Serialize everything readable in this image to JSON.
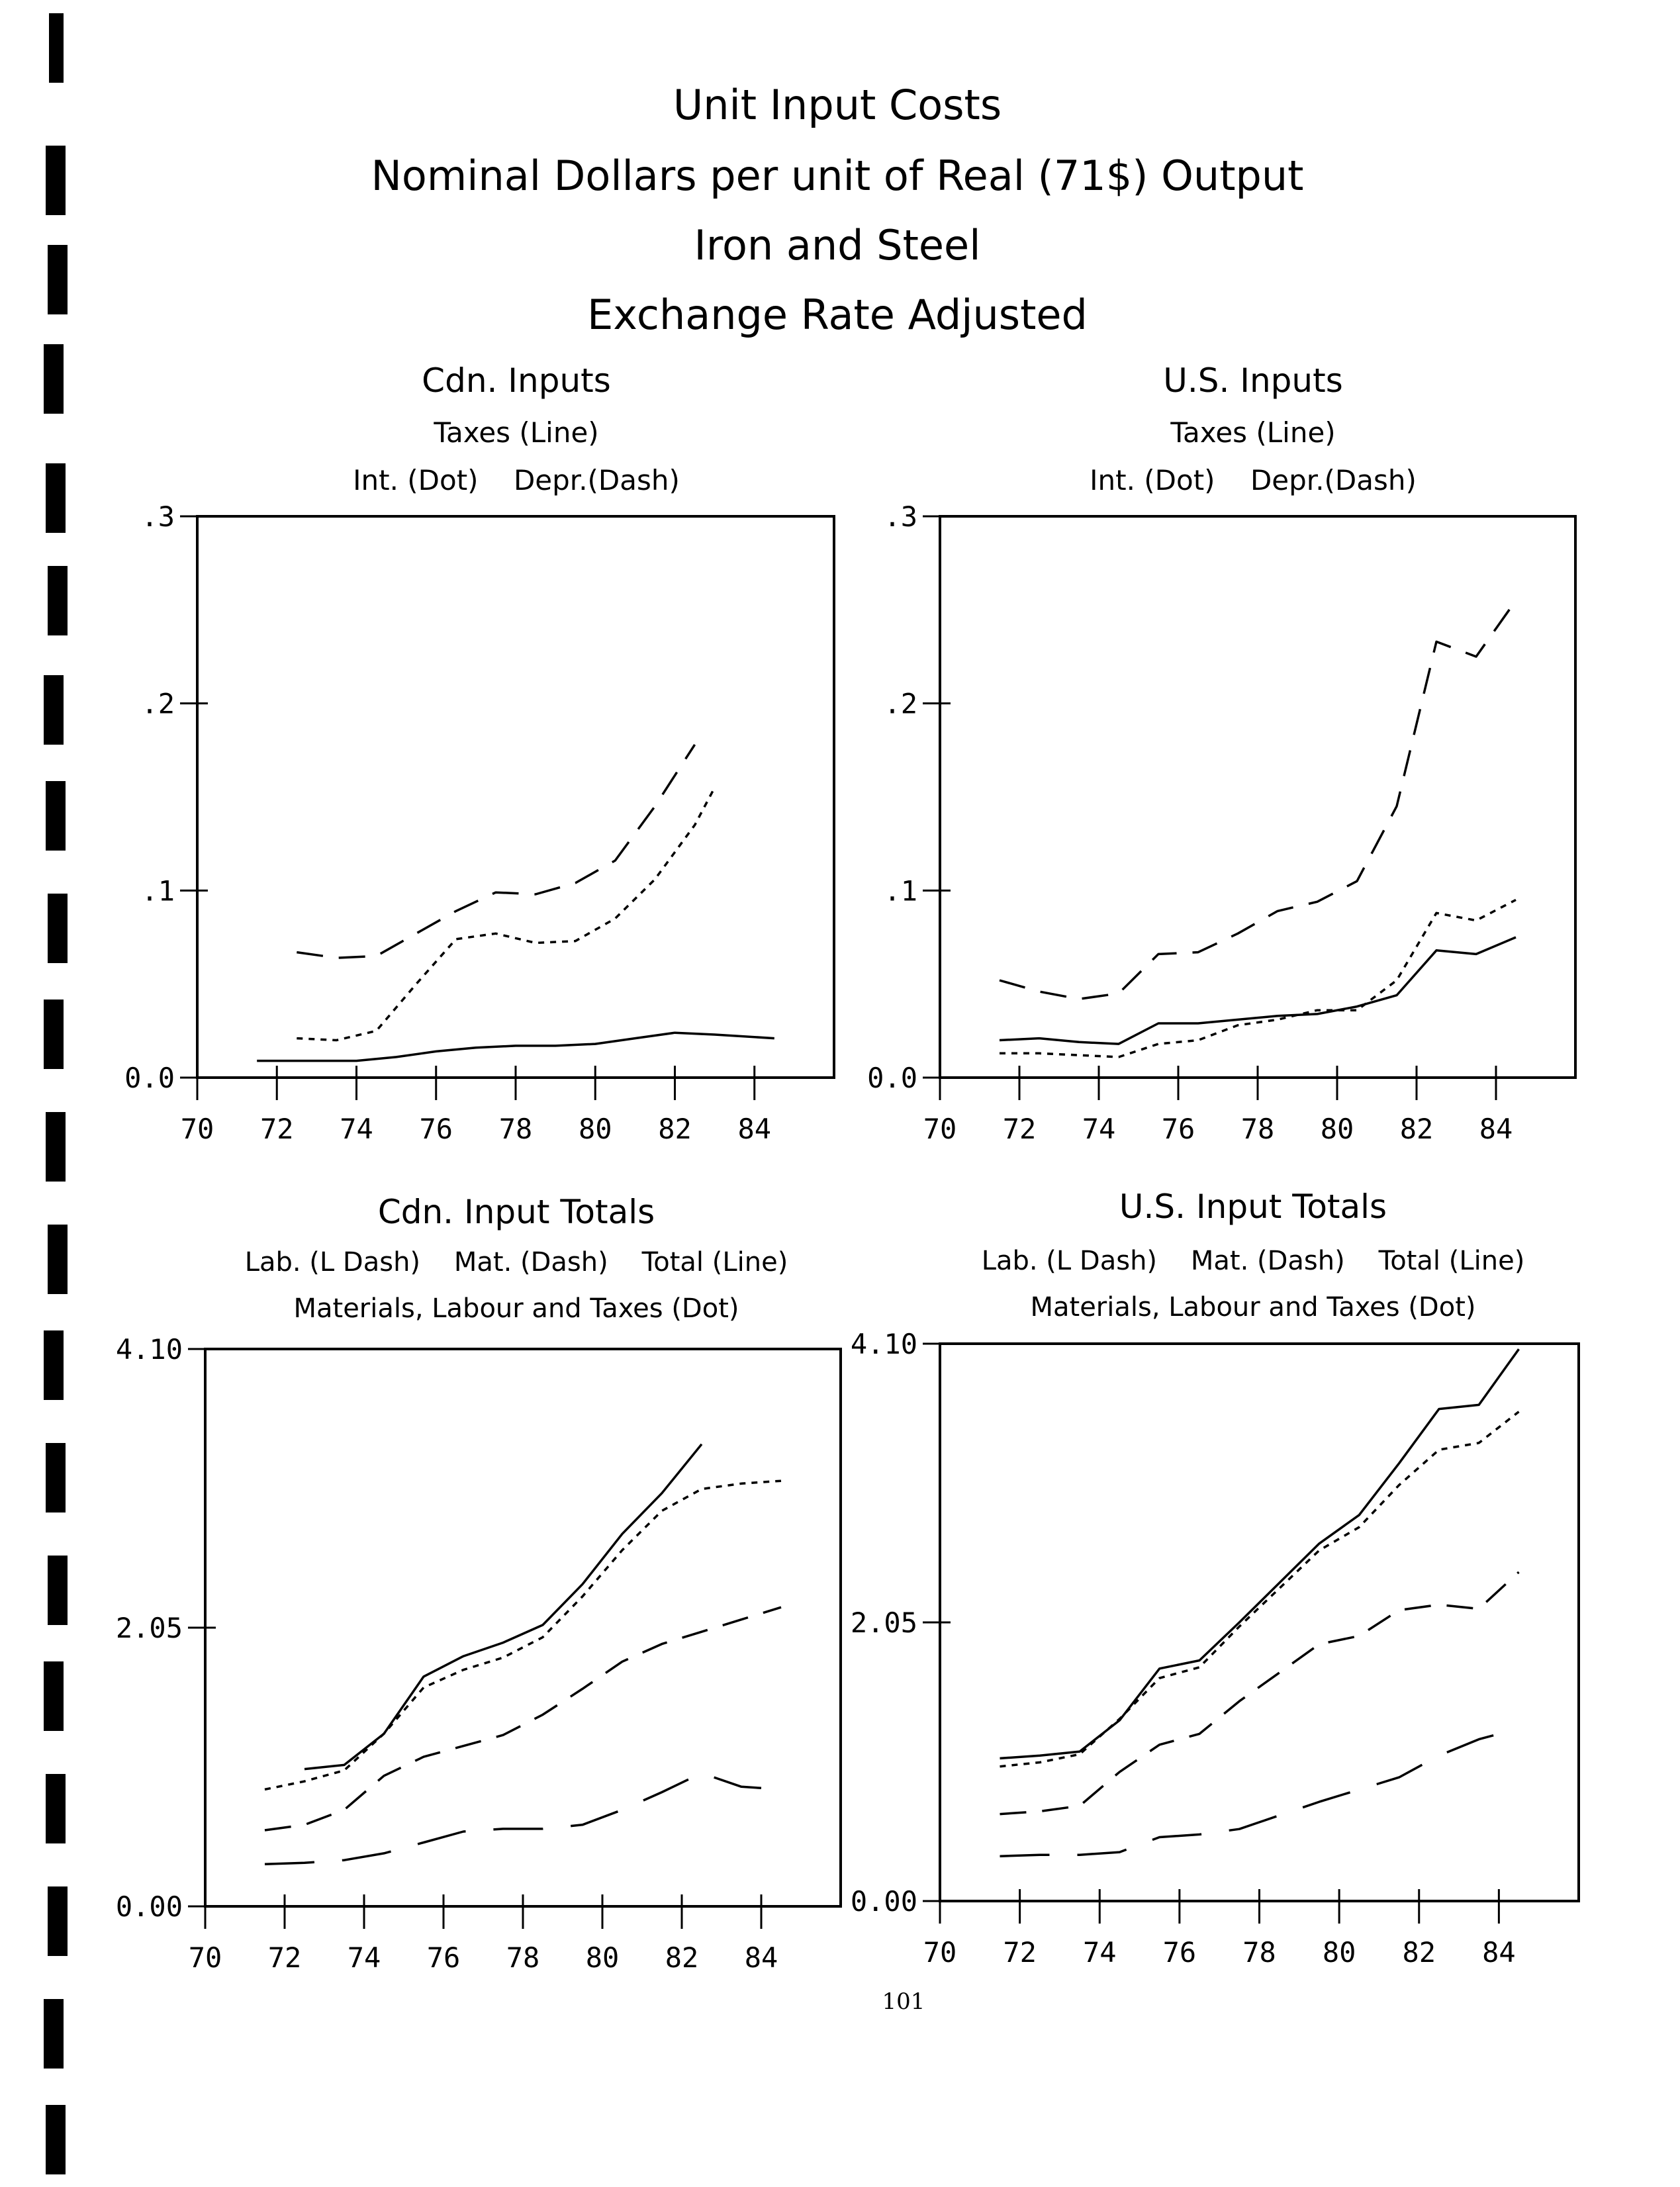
{
  "page": {
    "title_lines": [
      "Unit Input Costs",
      "Nominal Dollars per unit of Real (71$) Output",
      "Iron and Steel",
      "Exchange Rate Adjusted"
    ],
    "page_number": "101"
  },
  "chart_data": [
    {
      "type": "line",
      "title": "Cdn. Inputs",
      "subtitle_lines": [
        "Taxes (Line)",
        "Int. (Dot)    Depr.(Dash)"
      ],
      "xlim": [
        70,
        86
      ],
      "ylim": [
        0,
        0.3
      ],
      "x_ticks": [
        "70",
        "72",
        "74",
        "76",
        "78",
        "80",
        "82",
        "84"
      ],
      "y_ticks": [
        {
          "v": 0,
          "label": "0.0"
        },
        {
          "v": 0.1,
          "label": ".1"
        },
        {
          "v": 0.2,
          "label": ".2"
        },
        {
          "v": 0.3,
          "label": ".3"
        }
      ],
      "grid": false,
      "series": [
        {
          "name": "Taxes",
          "style": "solid",
          "points": [
            [
              71.5,
              0.009
            ],
            [
              72.5,
              0.009
            ],
            [
              74,
              0.009
            ],
            [
              75,
              0.011
            ],
            [
              76,
              0.014
            ],
            [
              77,
              0.016
            ],
            [
              78,
              0.017
            ],
            [
              79,
              0.017
            ],
            [
              80,
              0.018
            ],
            [
              81,
              0.021
            ],
            [
              82,
              0.024
            ],
            [
              83,
              0.023
            ],
            [
              84.5,
              0.021
            ]
          ]
        },
        {
          "name": "Int.",
          "style": "dot",
          "points": [
            [
              72.5,
              0.021
            ],
            [
              73.5,
              0.02
            ],
            [
              74.5,
              0.025
            ],
            [
              75.5,
              0.05
            ],
            [
              76.5,
              0.074
            ],
            [
              77.5,
              0.077
            ],
            [
              78.5,
              0.072
            ],
            [
              79.5,
              0.073
            ],
            [
              80.5,
              0.085
            ],
            [
              81.5,
              0.106
            ],
            [
              82.5,
              0.135
            ],
            [
              83,
              0.155
            ]
          ]
        },
        {
          "name": "Depr.",
          "style": "dash",
          "points": [
            [
              72.5,
              0.067
            ],
            [
              73.5,
              0.064
            ],
            [
              74.5,
              0.065
            ],
            [
              75.5,
              0.077
            ],
            [
              76.5,
              0.089
            ],
            [
              77.5,
              0.099
            ],
            [
              78.5,
              0.098
            ],
            [
              79.5,
              0.104
            ],
            [
              80.5,
              0.116
            ],
            [
              81.5,
              0.145
            ],
            [
              82.5,
              0.178
            ]
          ]
        }
      ]
    },
    {
      "type": "line",
      "title": "U.S. Inputs",
      "subtitle_lines": [
        "Taxes (Line)",
        "Int. (Dot)    Depr.(Dash)"
      ],
      "xlim": [
        70,
        86
      ],
      "ylim": [
        0,
        0.3
      ],
      "x_ticks": [
        "70",
        "72",
        "74",
        "76",
        "78",
        "80",
        "82",
        "84"
      ],
      "y_ticks": [
        {
          "v": 0,
          "label": "0.0"
        },
        {
          "v": 0.1,
          "label": ".1"
        },
        {
          "v": 0.2,
          "label": ".2"
        },
        {
          "v": 0.3,
          "label": ".3"
        }
      ],
      "grid": false,
      "series": [
        {
          "name": "Taxes",
          "style": "solid",
          "points": [
            [
              71.5,
              0.02
            ],
            [
              72.5,
              0.021
            ],
            [
              73.5,
              0.019
            ],
            [
              74.5,
              0.018
            ],
            [
              75.5,
              0.029
            ],
            [
              76.5,
              0.029
            ],
            [
              77.5,
              0.031
            ],
            [
              78.5,
              0.033
            ],
            [
              79.5,
              0.034
            ],
            [
              80.5,
              0.038
            ],
            [
              81.5,
              0.044
            ],
            [
              82.5,
              0.068
            ],
            [
              83.5,
              0.066
            ],
            [
              84.5,
              0.075
            ]
          ]
        },
        {
          "name": "Int.",
          "style": "dot",
          "points": [
            [
              71.5,
              0.013
            ],
            [
              72.5,
              0.013
            ],
            [
              73.5,
              0.012
            ],
            [
              74.5,
              0.011
            ],
            [
              75.5,
              0.018
            ],
            [
              76.5,
              0.02
            ],
            [
              77.5,
              0.028
            ],
            [
              78.5,
              0.031
            ],
            [
              79.5,
              0.036
            ],
            [
              80.5,
              0.036
            ],
            [
              81.5,
              0.052
            ],
            [
              82.5,
              0.088
            ],
            [
              83.5,
              0.084
            ],
            [
              84.5,
              0.095
            ]
          ]
        },
        {
          "name": "Depr.",
          "style": "dash",
          "points": [
            [
              71.5,
              0.052
            ],
            [
              72.5,
              0.046
            ],
            [
              73.5,
              0.042
            ],
            [
              74.5,
              0.045
            ],
            [
              75.5,
              0.066
            ],
            [
              76.5,
              0.067
            ],
            [
              77.5,
              0.077
            ],
            [
              78.5,
              0.089
            ],
            [
              79.5,
              0.094
            ],
            [
              80.5,
              0.105
            ],
            [
              81.5,
              0.145
            ],
            [
              82.5,
              0.233
            ],
            [
              83.5,
              0.225
            ],
            [
              84.5,
              0.255
            ]
          ]
        }
      ]
    },
    {
      "type": "line",
      "title": "Cdn. Input Totals",
      "subtitle_lines": [
        "Lab. (L Dash)    Mat. (Dash)    Total (Line)",
        "Materials, Labour and Taxes (Dot)"
      ],
      "xlim": [
        70,
        86
      ],
      "ylim": [
        0,
        4.1
      ],
      "x_ticks": [
        "70",
        "72",
        "74",
        "76",
        "78",
        "80",
        "82",
        "84"
      ],
      "y_ticks": [
        {
          "v": 0,
          "label": "0.00"
        },
        {
          "v": 2.05,
          "label": "2.05"
        },
        {
          "v": 4.1,
          "label": "4.10"
        }
      ],
      "grid": false,
      "series": [
        {
          "name": "Lab.",
          "style": "ldash",
          "points": [
            [
              71.5,
              0.31
            ],
            [
              72.5,
              0.32
            ],
            [
              73.5,
              0.34
            ],
            [
              74.5,
              0.39
            ],
            [
              75.5,
              0.47
            ],
            [
              76.5,
              0.55
            ],
            [
              77.5,
              0.57
            ],
            [
              78.5,
              0.57
            ],
            [
              79.5,
              0.6
            ],
            [
              80.5,
              0.71
            ],
            [
              81.5,
              0.84
            ],
            [
              82.5,
              0.98
            ],
            [
              83.5,
              0.88
            ],
            [
              84,
              0.87
            ]
          ]
        },
        {
          "name": "Mat.",
          "style": "dash",
          "points": [
            [
              71.5,
              0.56
            ],
            [
              72.5,
              0.6
            ],
            [
              73.5,
              0.71
            ],
            [
              74.5,
              0.96
            ],
            [
              75.5,
              1.1
            ],
            [
              76.5,
              1.18
            ],
            [
              77.5,
              1.26
            ],
            [
              78.5,
              1.41
            ],
            [
              79.5,
              1.6
            ],
            [
              80.5,
              1.8
            ],
            [
              81.5,
              1.93
            ],
            [
              82.5,
              2.02
            ],
            [
              83.5,
              2.11
            ],
            [
              84.5,
              2.2
            ]
          ]
        },
        {
          "name": "Materials, Labour and Taxes",
          "style": "dot",
          "points": [
            [
              71.5,
              0.86
            ],
            [
              72.5,
              0.92
            ],
            [
              73.5,
              1.0
            ],
            [
              74.5,
              1.27
            ],
            [
              75.5,
              1.61
            ],
            [
              76.5,
              1.74
            ],
            [
              77.5,
              1.83
            ],
            [
              78.5,
              1.98
            ],
            [
              79.5,
              2.28
            ],
            [
              80.5,
              2.62
            ],
            [
              81.5,
              2.91
            ],
            [
              82.5,
              3.07
            ],
            [
              83.5,
              3.11
            ],
            [
              84.5,
              3.13
            ]
          ]
        },
        {
          "name": "Total",
          "style": "solid",
          "points": [
            [
              72.5,
              1.01
            ],
            [
              73.5,
              1.04
            ],
            [
              74.5,
              1.27
            ],
            [
              75.5,
              1.69
            ],
            [
              76.5,
              1.84
            ],
            [
              77.5,
              1.94
            ],
            [
              78.5,
              2.07
            ],
            [
              79.5,
              2.37
            ],
            [
              80.5,
              2.74
            ],
            [
              81.5,
              3.04
            ],
            [
              82.5,
              3.4
            ]
          ]
        }
      ]
    },
    {
      "type": "line",
      "title": "U.S. Input Totals",
      "subtitle_lines": [
        "Lab. (L Dash)    Mat. (Dash)    Total (Line)",
        "Materials, Labour and Taxes (Dot)"
      ],
      "xlim": [
        70,
        86
      ],
      "ylim": [
        0,
        4.1
      ],
      "x_ticks": [
        "70",
        "72",
        "74",
        "76",
        "78",
        "80",
        "82",
        "84"
      ],
      "y_ticks": [
        {
          "v": 0,
          "label": "0.00"
        },
        {
          "v": 2.05,
          "label": "2.05"
        },
        {
          "v": 4.1,
          "label": "4.10"
        }
      ],
      "grid": false,
      "series": [
        {
          "name": "Lab.",
          "style": "ldash",
          "points": [
            [
              71.5,
              0.33
            ],
            [
              72.5,
              0.34
            ],
            [
              73.5,
              0.34
            ],
            [
              74.5,
              0.36
            ],
            [
              75.5,
              0.47
            ],
            [
              76.5,
              0.49
            ],
            [
              77.5,
              0.53
            ],
            [
              78.5,
              0.63
            ],
            [
              79.5,
              0.73
            ],
            [
              80.5,
              0.82
            ],
            [
              81.5,
              0.91
            ],
            [
              82.5,
              1.07
            ],
            [
              83.5,
              1.19
            ],
            [
              84,
              1.23
            ]
          ]
        },
        {
          "name": "Mat.",
          "style": "dash",
          "points": [
            [
              71.5,
              0.64
            ],
            [
              72.5,
              0.66
            ],
            [
              73.5,
              0.7
            ],
            [
              74.5,
              0.95
            ],
            [
              75.5,
              1.15
            ],
            [
              76.5,
              1.23
            ],
            [
              77.5,
              1.47
            ],
            [
              78.5,
              1.68
            ],
            [
              79.5,
              1.89
            ],
            [
              80.5,
              1.95
            ],
            [
              81.5,
              2.14
            ],
            [
              82.5,
              2.18
            ],
            [
              83.5,
              2.15
            ],
            [
              84.5,
              2.42
            ]
          ]
        },
        {
          "name": "Materials, Labour and Taxes",
          "style": "dot",
          "points": [
            [
              71.5,
              0.99
            ],
            [
              72.5,
              1.02
            ],
            [
              73.5,
              1.08
            ],
            [
              74.5,
              1.34
            ],
            [
              75.5,
              1.64
            ],
            [
              76.5,
              1.72
            ],
            [
              77.5,
              2.02
            ],
            [
              78.5,
              2.3
            ],
            [
              79.5,
              2.58
            ],
            [
              80.5,
              2.75
            ],
            [
              81.5,
              3.06
            ],
            [
              82.5,
              3.32
            ],
            [
              83.5,
              3.37
            ],
            [
              84.5,
              3.6
            ]
          ]
        },
        {
          "name": "Total",
          "style": "solid",
          "points": [
            [
              71.5,
              1.05
            ],
            [
              72.5,
              1.07
            ],
            [
              73.5,
              1.1
            ],
            [
              74.5,
              1.33
            ],
            [
              75.5,
              1.71
            ],
            [
              76.5,
              1.77
            ],
            [
              77.5,
              2.05
            ],
            [
              78.5,
              2.34
            ],
            [
              79.5,
              2.63
            ],
            [
              80.5,
              2.84
            ],
            [
              81.5,
              3.22
            ],
            [
              82.5,
              3.62
            ],
            [
              83.5,
              3.65
            ],
            [
              84.5,
              4.06
            ]
          ]
        }
      ]
    }
  ]
}
